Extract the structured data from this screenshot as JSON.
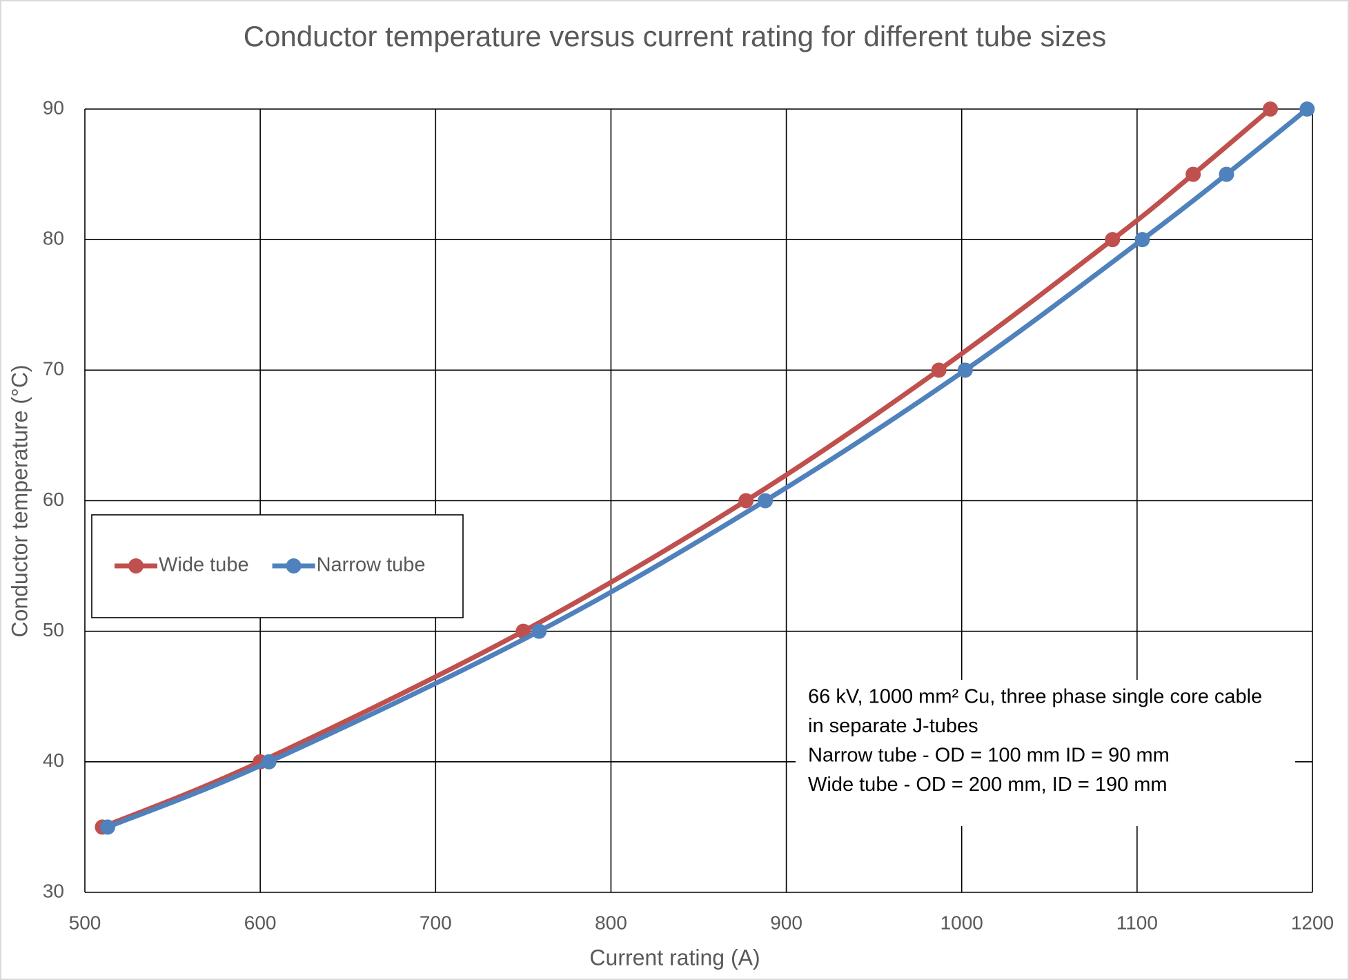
{
  "chart_data": {
    "type": "scatter",
    "smooth": true,
    "title": "Conductor temperature versus current rating for different tube sizes",
    "xlabel": "Current rating (A)",
    "ylabel": "Conductor temperature (°C)",
    "xlim": [
      500,
      1200
    ],
    "xticks": [
      500,
      600,
      700,
      800,
      900,
      1000,
      1100,
      1200
    ],
    "ylim": [
      30,
      90
    ],
    "yticks": [
      30,
      40,
      50,
      60,
      70,
      80,
      90
    ],
    "grid": true,
    "legend": "left",
    "series": [
      {
        "name": "Wide tube",
        "color": "#c0504d",
        "x": [
          510,
          600,
          750,
          877,
          987,
          1086,
          1132,
          1176
        ],
        "values": [
          35,
          40,
          50,
          60,
          70,
          80,
          85,
          90
        ]
      },
      {
        "name": "Narrow tube",
        "color": "#4f81bd",
        "x": [
          513,
          605,
          759,
          888,
          1002,
          1103,
          1151,
          1197
        ],
        "values": [
          35,
          40,
          50,
          60,
          70,
          80,
          85,
          90
        ]
      }
    ],
    "annotation": [
      "66 kV, 1000 mm² Cu, three phase single core cable",
      "in separate J-tubes",
      "Narrow tube - OD = 100 mm ID = 90 mm",
      "Wide tube - OD = 200 mm, ID = 190 mm"
    ]
  }
}
